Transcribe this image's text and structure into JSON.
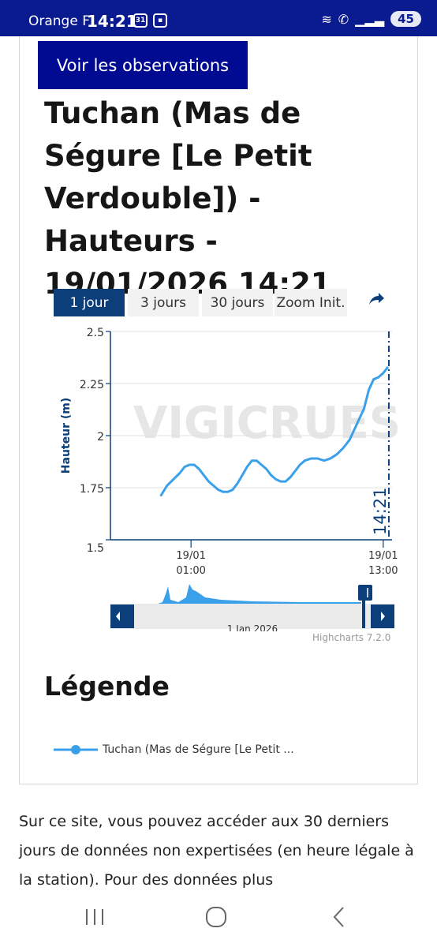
{
  "status_bar": {
    "carrier": "Orange F",
    "time": "14:21",
    "calendar_icon_text": "31",
    "battery": "45"
  },
  "observations_button": "Voir les observations",
  "station_title": "Tuchan (Mas de Ségure [Le Petit Verdouble]) - Hauteurs - 19/01/2026 14:21",
  "range_tabs": [
    {
      "label": "1 jour",
      "active": true
    },
    {
      "label": "3 jours",
      "active": false
    },
    {
      "label": "30 jours",
      "active": false
    },
    {
      "label": "Zoom Init.",
      "active": false
    }
  ],
  "chart_data": {
    "type": "line",
    "ylabel": "Hauteur (m)",
    "y_ticks": [
      "2.5",
      "2.25",
      "2",
      "1.75",
      "1.5"
    ],
    "ylim": [
      1.5,
      2.5
    ],
    "x_ticks": [
      {
        "label": [
          "19/01",
          "01:00"
        ],
        "x": 1
      },
      {
        "label": [
          "19/01",
          "13:00"
        ],
        "x": 13
      }
    ],
    "xlim": [
      -4.03,
      13.55
    ],
    "watermark": "VIGICRUES",
    "now_marker": {
      "label": "14:21",
      "x": 13.35
    },
    "series": [
      {
        "name": "Tuchan (Mas de Ségure [Le Petit ...",
        "color": "#3ba0ea",
        "points": [
          [
            -4.0,
            1.71
          ],
          [
            -3.6,
            1.76
          ],
          [
            -3.2,
            1.79
          ],
          [
            -2.8,
            1.82
          ],
          [
            -2.5,
            1.85
          ],
          [
            -2.2,
            1.86
          ],
          [
            -1.9,
            1.86
          ],
          [
            -1.6,
            1.84
          ],
          [
            -1.3,
            1.81
          ],
          [
            -1.0,
            1.78
          ],
          [
            -0.7,
            1.76
          ],
          [
            -0.4,
            1.74
          ],
          [
            -0.1,
            1.73
          ],
          [
            0.2,
            1.73
          ],
          [
            0.5,
            1.74
          ],
          [
            0.8,
            1.77
          ],
          [
            1.1,
            1.81
          ],
          [
            1.4,
            1.85
          ],
          [
            1.7,
            1.88
          ],
          [
            2.0,
            1.88
          ],
          [
            2.3,
            1.86
          ],
          [
            2.6,
            1.84
          ],
          [
            2.9,
            1.81
          ],
          [
            3.2,
            1.79
          ],
          [
            3.5,
            1.78
          ],
          [
            3.8,
            1.78
          ],
          [
            4.1,
            1.8
          ],
          [
            4.4,
            1.83
          ],
          [
            4.7,
            1.86
          ],
          [
            5.0,
            1.88
          ],
          [
            5.4,
            1.89
          ],
          [
            5.8,
            1.89
          ],
          [
            6.2,
            1.88
          ],
          [
            6.6,
            1.89
          ],
          [
            7.0,
            1.91
          ],
          [
            7.4,
            1.94
          ],
          [
            7.8,
            1.98
          ],
          [
            8.1,
            2.03
          ],
          [
            8.4,
            2.08
          ],
          [
            8.7,
            2.13
          ],
          [
            9.0,
            2.22
          ],
          [
            9.3,
            2.27
          ],
          [
            9.6,
            2.28
          ],
          [
            9.9,
            2.3
          ],
          [
            10.2,
            2.33
          ]
        ],
        "time_shift": 3.1
      }
    ],
    "navigator": {
      "label": "1 Jan 2026"
    }
  },
  "credits": "Highcharts 7.2.0",
  "legend_heading": "Légende",
  "legend_item": "Tuchan (Mas de Ségure [Le Petit ...",
  "paragraph": "Sur ce site, vous pouvez accéder aux 30 derniers jours de données non expertisées (en heure légale à la station). Pour des données plus",
  "colors": {
    "status_bar": "#0a1a8f",
    "primary_button": "#000b91",
    "active_tab": "#0c3e7a",
    "series": "#3ba0ea",
    "axis": "#0c3e7a"
  }
}
